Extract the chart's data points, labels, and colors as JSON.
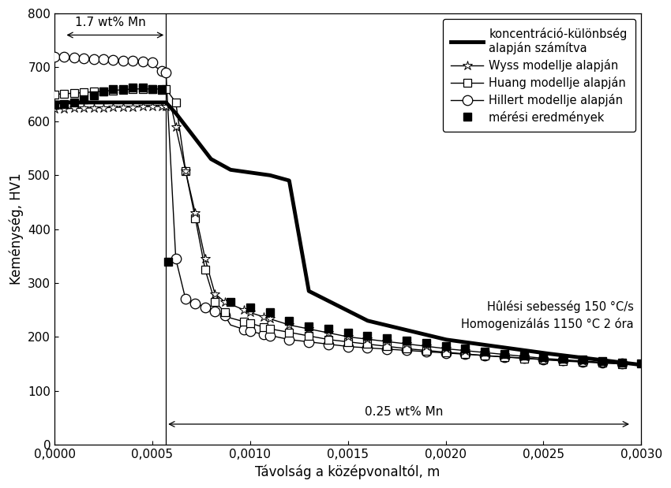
{
  "xlabel": "Távolság a középvonaltól, m",
  "ylabel": "Keménység, HV1",
  "xlim": [
    0.0,
    0.003
  ],
  "ylim": [
    0,
    800
  ],
  "yticks": [
    0,
    100,
    200,
    300,
    400,
    500,
    600,
    700,
    800
  ],
  "xticks": [
    0.0,
    0.0005,
    0.001,
    0.0015,
    0.002,
    0.0025,
    0.003
  ],
  "annotation_1_7": "1.7 wt% Mn",
  "annotation_0_25": "0.25 wt% Mn",
  "vline_x": 0.00057,
  "legend_entries": [
    "koncentráció-különbség\nalapján számítva",
    "Wyss modellje alapján",
    "Huang modellje alapján",
    "Hillert modellje alapján",
    "mérési eredmények"
  ],
  "text_info_line1": "Hûlési sebesség 150 °C/s",
  "text_info_line2": "Homogenizálás 1150 °C 2 óra",
  "background_color": "#ffffff"
}
